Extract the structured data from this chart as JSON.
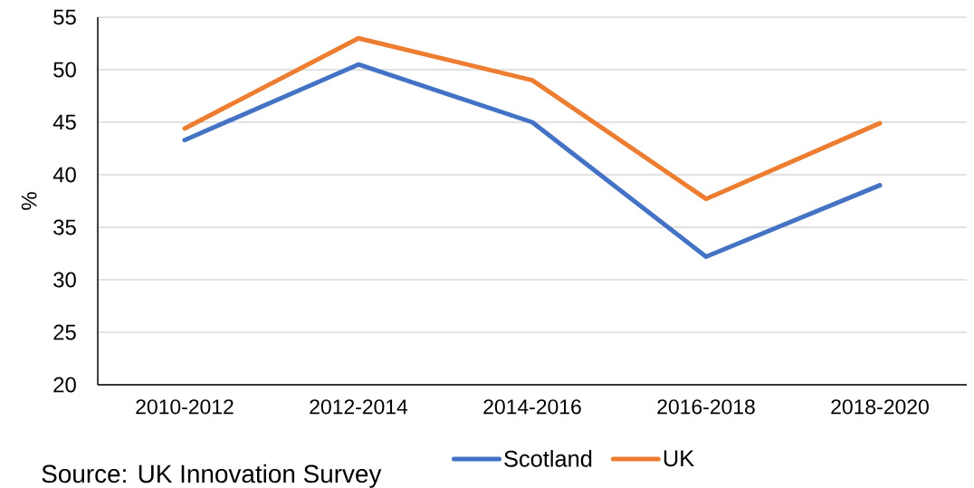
{
  "chart_data": {
    "type": "line",
    "ylabel": "%",
    "annotations": [
      "Source: UK Innovation Survey"
    ],
    "categories": [
      "2010-2012",
      "2012-2014",
      "2014-2016",
      "2016-2018",
      "2018-2020"
    ],
    "series": [
      {
        "name": "Scotland",
        "color": "#4472c4",
        "values": [
          43.3,
          50.5,
          45.0,
          32.2,
          39.0
        ]
      },
      {
        "name": "UK",
        "color": "#ed7d31",
        "values": [
          44.4,
          53.0,
          49.0,
          37.7,
          44.9
        ]
      }
    ],
    "ylim": [
      20,
      55
    ],
    "yticks": [
      20,
      25,
      30,
      35,
      40,
      45,
      50,
      55
    ],
    "grid": "y",
    "legend": "bottom",
    "marker": "none",
    "line_style": "solid"
  }
}
